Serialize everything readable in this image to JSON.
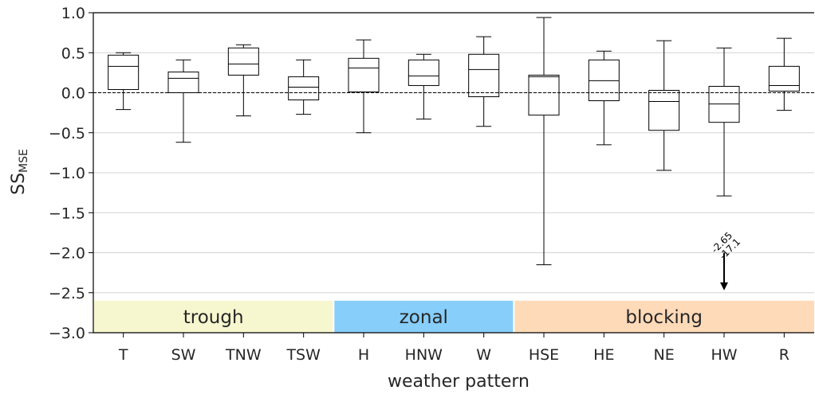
{
  "chart_data": {
    "type": "box",
    "xlabel": "weather pattern",
    "ylabel": "SS",
    "ylabel_subscript": "MSE",
    "ylim": [
      -3.0,
      1.0
    ],
    "yticks": [
      1.0,
      0.5,
      0.0,
      -0.5,
      -1.0,
      -1.5,
      -2.0,
      -2.5,
      -3.0
    ],
    "ytick_labels": [
      "1.0",
      "0.5",
      "0.0",
      "−0.5",
      "−1.0",
      "−1.5",
      "−2.0",
      "−2.5",
      "−3.0"
    ],
    "grid": "horizontal",
    "reference_line": {
      "y": 0.0,
      "style": "dashed"
    },
    "categories": [
      "T",
      "SW",
      "TNW",
      "TSW",
      "H",
      "HNW",
      "W",
      "HSE",
      "HE",
      "NE",
      "HW",
      "R"
    ],
    "boxes": [
      {
        "category": "T",
        "whislo": -0.21,
        "q1": 0.04,
        "med": 0.33,
        "q3": 0.47,
        "whishi": 0.5
      },
      {
        "category": "SW",
        "whislo": -0.62,
        "q1": 0.0,
        "med": 0.18,
        "q3": 0.26,
        "whishi": 0.41
      },
      {
        "category": "TNW",
        "whislo": -0.29,
        "q1": 0.22,
        "med": 0.36,
        "q3": 0.56,
        "whishi": 0.6
      },
      {
        "category": "TSW",
        "whislo": -0.27,
        "q1": -0.09,
        "med": 0.07,
        "q3": 0.2,
        "whishi": 0.41
      },
      {
        "category": "H",
        "whislo": -0.5,
        "q1": 0.01,
        "med": 0.31,
        "q3": 0.43,
        "whishi": 0.66
      },
      {
        "category": "HNW",
        "whislo": -0.33,
        "q1": 0.09,
        "med": 0.21,
        "q3": 0.41,
        "whishi": 0.48
      },
      {
        "category": "W",
        "whislo": -0.42,
        "q1": -0.05,
        "med": 0.29,
        "q3": 0.48,
        "whishi": 0.7
      },
      {
        "category": "HSE",
        "whislo": -2.15,
        "q1": -0.28,
        "med": 0.2,
        "q3": 0.22,
        "whishi": 0.94
      },
      {
        "category": "HE",
        "whislo": -0.65,
        "q1": -0.1,
        "med": 0.15,
        "q3": 0.41,
        "whishi": 0.52
      },
      {
        "category": "NE",
        "whislo": -0.97,
        "q1": -0.47,
        "med": -0.11,
        "q3": 0.03,
        "whishi": 0.65
      },
      {
        "category": "HW",
        "whislo": -1.29,
        "q1": -0.37,
        "med": -0.14,
        "q3": 0.08,
        "whishi": 0.56
      },
      {
        "category": "R",
        "whislo": -0.22,
        "q1": 0.02,
        "med": 0.09,
        "q3": 0.33,
        "whishi": 0.68
      }
    ],
    "groups": [
      {
        "label": "trough",
        "first": 0,
        "last": 3,
        "color": "#f7f7cf"
      },
      {
        "label": "zonal",
        "first": 4,
        "last": 6,
        "color": "#87cefa"
      },
      {
        "label": "blocking",
        "first": 7,
        "last": 11,
        "color": "#ffdab9"
      }
    ],
    "groups_band": {
      "y_top": -2.6,
      "y_bottom": -3.0
    },
    "outlier_annotation": {
      "category": "HW",
      "lines": [
        "-2.65",
        "-17.1"
      ],
      "arrow_from_y": -2.0,
      "arrow_to_y": -2.47
    }
  }
}
